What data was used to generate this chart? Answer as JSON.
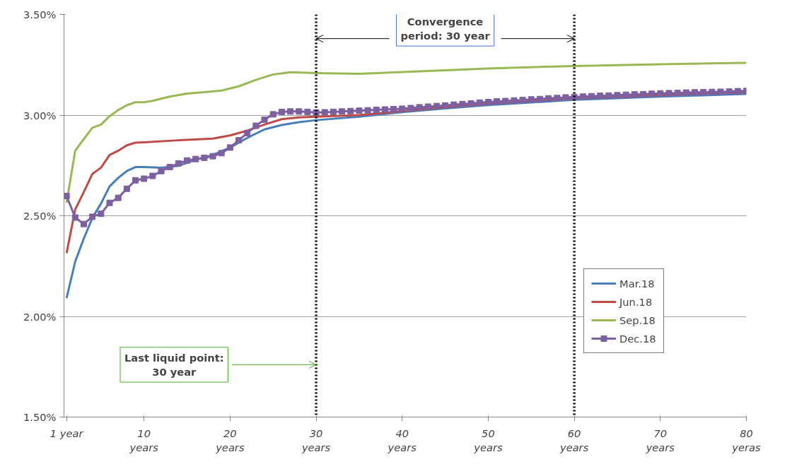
{
  "chart_data": {
    "type": "line",
    "xlim": [
      0.7,
      80
    ],
    "ylim": [
      1.5,
      3.5
    ],
    "xticks": [
      {
        "value": 1,
        "label": "1 year"
      },
      {
        "value": 10,
        "label": "10\nyears"
      },
      {
        "value": 20,
        "label": "20\nyears"
      },
      {
        "value": 30,
        "label": "30\nyears"
      },
      {
        "value": 40,
        "label": "40\nyears"
      },
      {
        "value": 50,
        "label": "50\nyears"
      },
      {
        "value": 60,
        "label": "60\nyears"
      },
      {
        "value": 70,
        "label": "70\nyears"
      },
      {
        "value": 80,
        "label": "80\nyeras"
      }
    ],
    "yticks": [
      {
        "value": 1.5,
        "label": "1.50%"
      },
      {
        "value": 2.0,
        "label": "2.00%"
      },
      {
        "value": 2.5,
        "label": "2.50%"
      },
      {
        "value": 3.0,
        "label": "3.00%"
      },
      {
        "value": 3.5,
        "label": "3.50%"
      }
    ],
    "grid": "y",
    "legend": "right",
    "line_style": "solid",
    "series": [
      {
        "name": "Mar.18",
        "color": "#4a7ebb",
        "marker": "none",
        "x": [
          1,
          2,
          3,
          4,
          5,
          6,
          7,
          8,
          9,
          10,
          12,
          14,
          16,
          18,
          20,
          22,
          24,
          26,
          28,
          30,
          35,
          40,
          45,
          50,
          60,
          70,
          80
        ],
        "values": [
          2.091,
          2.272,
          2.387,
          2.489,
          2.561,
          2.646,
          2.688,
          2.722,
          2.742,
          2.742,
          2.739,
          2.748,
          2.778,
          2.802,
          2.839,
          2.887,
          2.929,
          2.951,
          2.965,
          2.975,
          2.992,
          3.015,
          3.033,
          3.05,
          3.076,
          3.092,
          3.105
        ]
      },
      {
        "name": "Jun.18",
        "color": "#be4b48",
        "marker": "none",
        "x": [
          1,
          2,
          3,
          4,
          5,
          6,
          7,
          8,
          9,
          10,
          14,
          18,
          20,
          22,
          24,
          26,
          28,
          30,
          35,
          40,
          45,
          50,
          60,
          70,
          80
        ],
        "values": [
          2.314,
          2.531,
          2.618,
          2.708,
          2.739,
          2.802,
          2.823,
          2.85,
          2.863,
          2.865,
          2.875,
          2.883,
          2.899,
          2.923,
          2.953,
          2.98,
          2.989,
          2.992,
          3.0,
          3.02,
          3.04,
          3.058,
          3.085,
          3.1,
          3.115
        ]
      },
      {
        "name": "Sep.18",
        "color": "#98b954",
        "marker": "none",
        "x": [
          1,
          2,
          3,
          4,
          5,
          6,
          7,
          8,
          9,
          10,
          11,
          13,
          15,
          17,
          19,
          21,
          23,
          25,
          27,
          30,
          35,
          40,
          50,
          60,
          70,
          80
        ],
        "values": [
          2.565,
          2.823,
          2.881,
          2.937,
          2.953,
          2.995,
          3.025,
          3.049,
          3.064,
          3.064,
          3.071,
          3.092,
          3.107,
          3.114,
          3.122,
          3.143,
          3.175,
          3.202,
          3.213,
          3.209,
          3.205,
          3.214,
          3.232,
          3.244,
          3.253,
          3.26
        ]
      },
      {
        "name": "Dec.18",
        "color": "#7d60a0",
        "marker": "square",
        "x": [
          1,
          2,
          3,
          4,
          5,
          6,
          7,
          8,
          9,
          10,
          11,
          12,
          13,
          14,
          15,
          16,
          17,
          18,
          19,
          20,
          21,
          22,
          23,
          24,
          25,
          26,
          27,
          28,
          29,
          30,
          31,
          32,
          33,
          34,
          35,
          36,
          37,
          38,
          39,
          40,
          41,
          42,
          43,
          44,
          45,
          46,
          47,
          48,
          49,
          50,
          51,
          52,
          53,
          54,
          55,
          56,
          57,
          58,
          59,
          60,
          61,
          62,
          63,
          64,
          65,
          66,
          67,
          68,
          69,
          70,
          71,
          72,
          73,
          74,
          75,
          76,
          77,
          78,
          79,
          80
        ],
        "values": [
          2.598,
          2.491,
          2.459,
          2.495,
          2.51,
          2.564,
          2.589,
          2.634,
          2.676,
          2.684,
          2.698,
          2.722,
          2.742,
          2.76,
          2.775,
          2.782,
          2.788,
          2.796,
          2.811,
          2.839,
          2.875,
          2.911,
          2.947,
          2.977,
          3.004,
          3.016,
          3.018,
          3.018,
          3.016,
          3.013,
          3.014,
          3.016,
          3.018,
          3.02,
          3.022,
          3.024,
          3.026,
          3.028,
          3.03,
          3.032,
          3.035,
          3.039,
          3.042,
          3.045,
          3.048,
          3.052,
          3.055,
          3.058,
          3.062,
          3.065,
          3.068,
          3.07,
          3.073,
          3.075,
          3.078,
          3.08,
          3.083,
          3.085,
          3.088,
          3.09,
          3.092,
          3.094,
          3.096,
          3.097,
          3.099,
          3.101,
          3.103,
          3.104,
          3.106,
          3.108,
          3.109,
          3.11,
          3.112,
          3.113,
          3.114,
          3.115,
          3.116,
          3.117,
          3.119,
          3.12
        ]
      }
    ],
    "ref_lines": [
      {
        "axis": "x",
        "value": 30,
        "label": null,
        "line_style": "dotted",
        "color": "#000000"
      },
      {
        "axis": "x",
        "value": 60,
        "label": null,
        "line_style": "dotted",
        "color": "#000000"
      }
    ],
    "annotations": [
      {
        "text": "Convergence\nperiod: 30 year",
        "x": 30,
        "y": 3.38
      },
      {
        "text": "Last liquid point:\n30 year",
        "x": 30,
        "y": 1.76
      }
    ]
  }
}
